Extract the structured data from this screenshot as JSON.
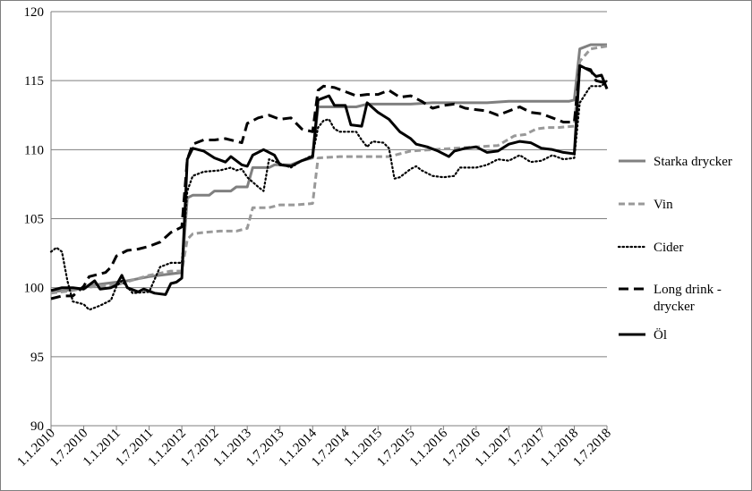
{
  "chart_data": {
    "type": "line",
    "title": "",
    "xlabel": "",
    "ylabel": "",
    "ylim": [
      90,
      120
    ],
    "y_ticks": [
      "90",
      "95",
      "100",
      "105",
      "110",
      "115",
      "120"
    ],
    "x_tick_labels": [
      "1.1.2010",
      "1.7.2010",
      "1.1.2011",
      "1.7.2011",
      "1.1.2012",
      "1.7.2012",
      "1.1.2013",
      "1.7.2013",
      "1.1.2014",
      "1.7.2014",
      "1.1.2015",
      "1.7.2015",
      "1.1.2016",
      "1.7.2016",
      "1.1.2017",
      "1.7.2017",
      "1.1.2018",
      "1.7.2018"
    ],
    "x_range_months": [
      0,
      102
    ],
    "grid": "horizontal",
    "legend_position": "right",
    "series": [
      {
        "name": "Starka drycker",
        "color": "#808080",
        "dash": "solid",
        "points": [
          [
            0,
            99.7
          ],
          [
            5,
            99.9
          ],
          [
            8,
            100.2
          ],
          [
            10,
            100.3
          ],
          [
            14,
            100.5
          ],
          [
            18,
            100.8
          ],
          [
            22,
            101.0
          ],
          [
            24,
            101.1
          ],
          [
            25,
            106.5
          ],
          [
            26,
            106.7
          ],
          [
            29,
            106.7
          ],
          [
            30,
            107.0
          ],
          [
            33,
            107.0
          ],
          [
            34,
            107.3
          ],
          [
            36,
            107.3
          ],
          [
            37,
            108.7
          ],
          [
            40,
            108.7
          ],
          [
            41,
            108.9
          ],
          [
            44,
            108.9
          ],
          [
            46,
            109.2
          ],
          [
            48,
            109.4
          ],
          [
            49,
            113.1
          ],
          [
            53,
            113.1
          ],
          [
            56,
            113.1
          ],
          [
            58,
            113.3
          ],
          [
            66,
            113.3
          ],
          [
            70,
            113.4
          ],
          [
            80,
            113.4
          ],
          [
            84,
            113.5
          ],
          [
            95,
            113.5
          ],
          [
            96,
            113.6
          ],
          [
            97,
            117.3
          ],
          [
            99,
            117.6
          ],
          [
            102,
            117.6
          ]
        ]
      },
      {
        "name": "Vin",
        "color": "#999999",
        "dash": "dashed",
        "points": [
          [
            0,
            99.6
          ],
          [
            4,
            99.8
          ],
          [
            8,
            100.1
          ],
          [
            12,
            100.2
          ],
          [
            18,
            100.9
          ],
          [
            22,
            101.2
          ],
          [
            24,
            101.2
          ],
          [
            25,
            103.5
          ],
          [
            26,
            103.9
          ],
          [
            28,
            104.0
          ],
          [
            31,
            104.1
          ],
          [
            34,
            104.1
          ],
          [
            36,
            104.3
          ],
          [
            37,
            105.8
          ],
          [
            40,
            105.8
          ],
          [
            42,
            106.0
          ],
          [
            45,
            106.0
          ],
          [
            48,
            106.1
          ],
          [
            49,
            109.4
          ],
          [
            53,
            109.5
          ],
          [
            58,
            109.5
          ],
          [
            62,
            109.5
          ],
          [
            64,
            109.7
          ],
          [
            66,
            109.9
          ],
          [
            70,
            110.0
          ],
          [
            74,
            110.1
          ],
          [
            78,
            110.2
          ],
          [
            82,
            110.3
          ],
          [
            85,
            111.0
          ],
          [
            87,
            111.1
          ],
          [
            89,
            111.5
          ],
          [
            91,
            111.6
          ],
          [
            93,
            111.6
          ],
          [
            96,
            111.7
          ],
          [
            97,
            116.4
          ],
          [
            99,
            117.3
          ],
          [
            102,
            117.5
          ]
        ]
      },
      {
        "name": "Cider",
        "color": "#000000",
        "dash": "dotted",
        "points": [
          [
            0,
            102.6
          ],
          [
            1,
            102.9
          ],
          [
            2,
            102.6
          ],
          [
            3,
            100.5
          ],
          [
            4,
            99.0
          ],
          [
            6,
            98.8
          ],
          [
            7,
            98.4
          ],
          [
            9,
            98.7
          ],
          [
            11,
            99.1
          ],
          [
            12,
            100.1
          ],
          [
            13,
            100.5
          ],
          [
            15,
            99.6
          ],
          [
            18,
            99.7
          ],
          [
            20,
            101.5
          ],
          [
            22,
            101.8
          ],
          [
            24,
            101.8
          ],
          [
            25,
            107.0
          ],
          [
            26,
            108.1
          ],
          [
            28,
            108.4
          ],
          [
            31,
            108.5
          ],
          [
            33,
            108.7
          ],
          [
            34,
            108.5
          ],
          [
            35,
            108.6
          ],
          [
            36,
            108.0
          ],
          [
            38,
            107.3
          ],
          [
            39,
            107.0
          ],
          [
            40,
            109.3
          ],
          [
            42,
            109.0
          ],
          [
            44,
            108.7
          ],
          [
            46,
            109.2
          ],
          [
            48,
            109.6
          ],
          [
            49,
            111.6
          ],
          [
            50,
            112.1
          ],
          [
            51,
            112.2
          ],
          [
            52,
            111.5
          ],
          [
            53,
            111.3
          ],
          [
            56,
            111.3
          ],
          [
            57,
            110.7
          ],
          [
            58,
            110.2
          ],
          [
            59,
            110.6
          ],
          [
            61,
            110.5
          ],
          [
            62,
            110.1
          ],
          [
            63,
            107.9
          ],
          [
            64,
            108.0
          ],
          [
            66,
            108.6
          ],
          [
            67,
            108.8
          ],
          [
            68,
            108.5
          ],
          [
            70,
            108.1
          ],
          [
            72,
            108.0
          ],
          [
            74,
            108.1
          ],
          [
            75,
            108.7
          ],
          [
            78,
            108.7
          ],
          [
            80,
            108.9
          ],
          [
            82,
            109.3
          ],
          [
            84,
            109.2
          ],
          [
            86,
            109.6
          ],
          [
            88,
            109.1
          ],
          [
            90,
            109.2
          ],
          [
            92,
            109.6
          ],
          [
            94,
            109.3
          ],
          [
            96,
            109.4
          ],
          [
            97,
            113.4
          ],
          [
            99,
            114.6
          ],
          [
            101,
            114.6
          ],
          [
            102,
            115.0
          ]
        ]
      },
      {
        "name": "Long drink - drycker",
        "color": "#000000",
        "dash": "longdash",
        "points": [
          [
            0,
            99.2
          ],
          [
            2,
            99.4
          ],
          [
            4,
            99.4
          ],
          [
            6,
            100.1
          ],
          [
            7,
            100.8
          ],
          [
            9,
            101.0
          ],
          [
            10,
            101.1
          ],
          [
            11,
            101.5
          ],
          [
            12,
            102.3
          ],
          [
            14,
            102.7
          ],
          [
            16,
            102.8
          ],
          [
            18,
            103.0
          ],
          [
            20,
            103.3
          ],
          [
            22,
            104.0
          ],
          [
            24,
            104.4
          ],
          [
            25,
            109.3
          ],
          [
            26,
            110.4
          ],
          [
            28,
            110.7
          ],
          [
            30,
            110.7
          ],
          [
            32,
            110.8
          ],
          [
            34,
            110.6
          ],
          [
            35,
            110.5
          ],
          [
            36,
            111.9
          ],
          [
            38,
            112.3
          ],
          [
            40,
            112.5
          ],
          [
            42,
            112.2
          ],
          [
            44,
            112.3
          ],
          [
            46,
            111.5
          ],
          [
            48,
            111.3
          ],
          [
            49,
            114.3
          ],
          [
            50,
            114.6
          ],
          [
            52,
            114.5
          ],
          [
            54,
            114.2
          ],
          [
            56,
            113.9
          ],
          [
            58,
            114.0
          ],
          [
            60,
            114.0
          ],
          [
            62,
            114.3
          ],
          [
            64,
            113.8
          ],
          [
            66,
            113.9
          ],
          [
            68,
            113.5
          ],
          [
            70,
            113.0
          ],
          [
            72,
            113.2
          ],
          [
            74,
            113.3
          ],
          [
            76,
            113.0
          ],
          [
            78,
            112.9
          ],
          [
            80,
            112.8
          ],
          [
            82,
            112.5
          ],
          [
            84,
            112.8
          ],
          [
            86,
            113.1
          ],
          [
            88,
            112.7
          ],
          [
            90,
            112.6
          ],
          [
            92,
            112.3
          ],
          [
            94,
            112.0
          ],
          [
            96,
            112.0
          ],
          [
            97,
            116.0
          ],
          [
            99,
            115.8
          ],
          [
            100,
            115.0
          ],
          [
            102,
            114.8
          ]
        ]
      },
      {
        "name": "Öl",
        "color": "#000000",
        "dash": "solid-bold",
        "points": [
          [
            0,
            99.8
          ],
          [
            2,
            100.0
          ],
          [
            4,
            100.0
          ],
          [
            6,
            99.9
          ],
          [
            7,
            100.2
          ],
          [
            8,
            100.5
          ],
          [
            9,
            99.9
          ],
          [
            11,
            100.0
          ],
          [
            12,
            100.2
          ],
          [
            13,
            100.9
          ],
          [
            14,
            100.0
          ],
          [
            16,
            99.7
          ],
          [
            17,
            99.9
          ],
          [
            19,
            99.6
          ],
          [
            21,
            99.5
          ],
          [
            22,
            100.3
          ],
          [
            23,
            100.4
          ],
          [
            24,
            100.7
          ],
          [
            25,
            109.3
          ],
          [
            26,
            110.1
          ],
          [
            28,
            109.9
          ],
          [
            30,
            109.4
          ],
          [
            32,
            109.1
          ],
          [
            33,
            109.5
          ],
          [
            35,
            108.9
          ],
          [
            36,
            108.8
          ],
          [
            37,
            109.6
          ],
          [
            39,
            110.0
          ],
          [
            41,
            109.6
          ],
          [
            42,
            108.9
          ],
          [
            44,
            108.8
          ],
          [
            46,
            109.2
          ],
          [
            48,
            109.5
          ],
          [
            49,
            113.6
          ],
          [
            51,
            113.9
          ],
          [
            52,
            113.2
          ],
          [
            54,
            113.2
          ],
          [
            55,
            111.8
          ],
          [
            57,
            111.7
          ],
          [
            58,
            113.4
          ],
          [
            60,
            112.7
          ],
          [
            62,
            112.2
          ],
          [
            64,
            111.3
          ],
          [
            66,
            110.8
          ],
          [
            67,
            110.4
          ],
          [
            69,
            110.2
          ],
          [
            71,
            109.9
          ],
          [
            73,
            109.5
          ],
          [
            74,
            109.9
          ],
          [
            76,
            110.1
          ],
          [
            78,
            110.2
          ],
          [
            80,
            109.8
          ],
          [
            82,
            109.9
          ],
          [
            84,
            110.4
          ],
          [
            86,
            110.6
          ],
          [
            88,
            110.5
          ],
          [
            90,
            110.1
          ],
          [
            92,
            110.0
          ],
          [
            94,
            109.8
          ],
          [
            96,
            109.7
          ],
          [
            97,
            116.1
          ],
          [
            99,
            115.7
          ],
          [
            100,
            115.3
          ],
          [
            101,
            115.4
          ],
          [
            102,
            114.4
          ]
        ]
      }
    ]
  }
}
